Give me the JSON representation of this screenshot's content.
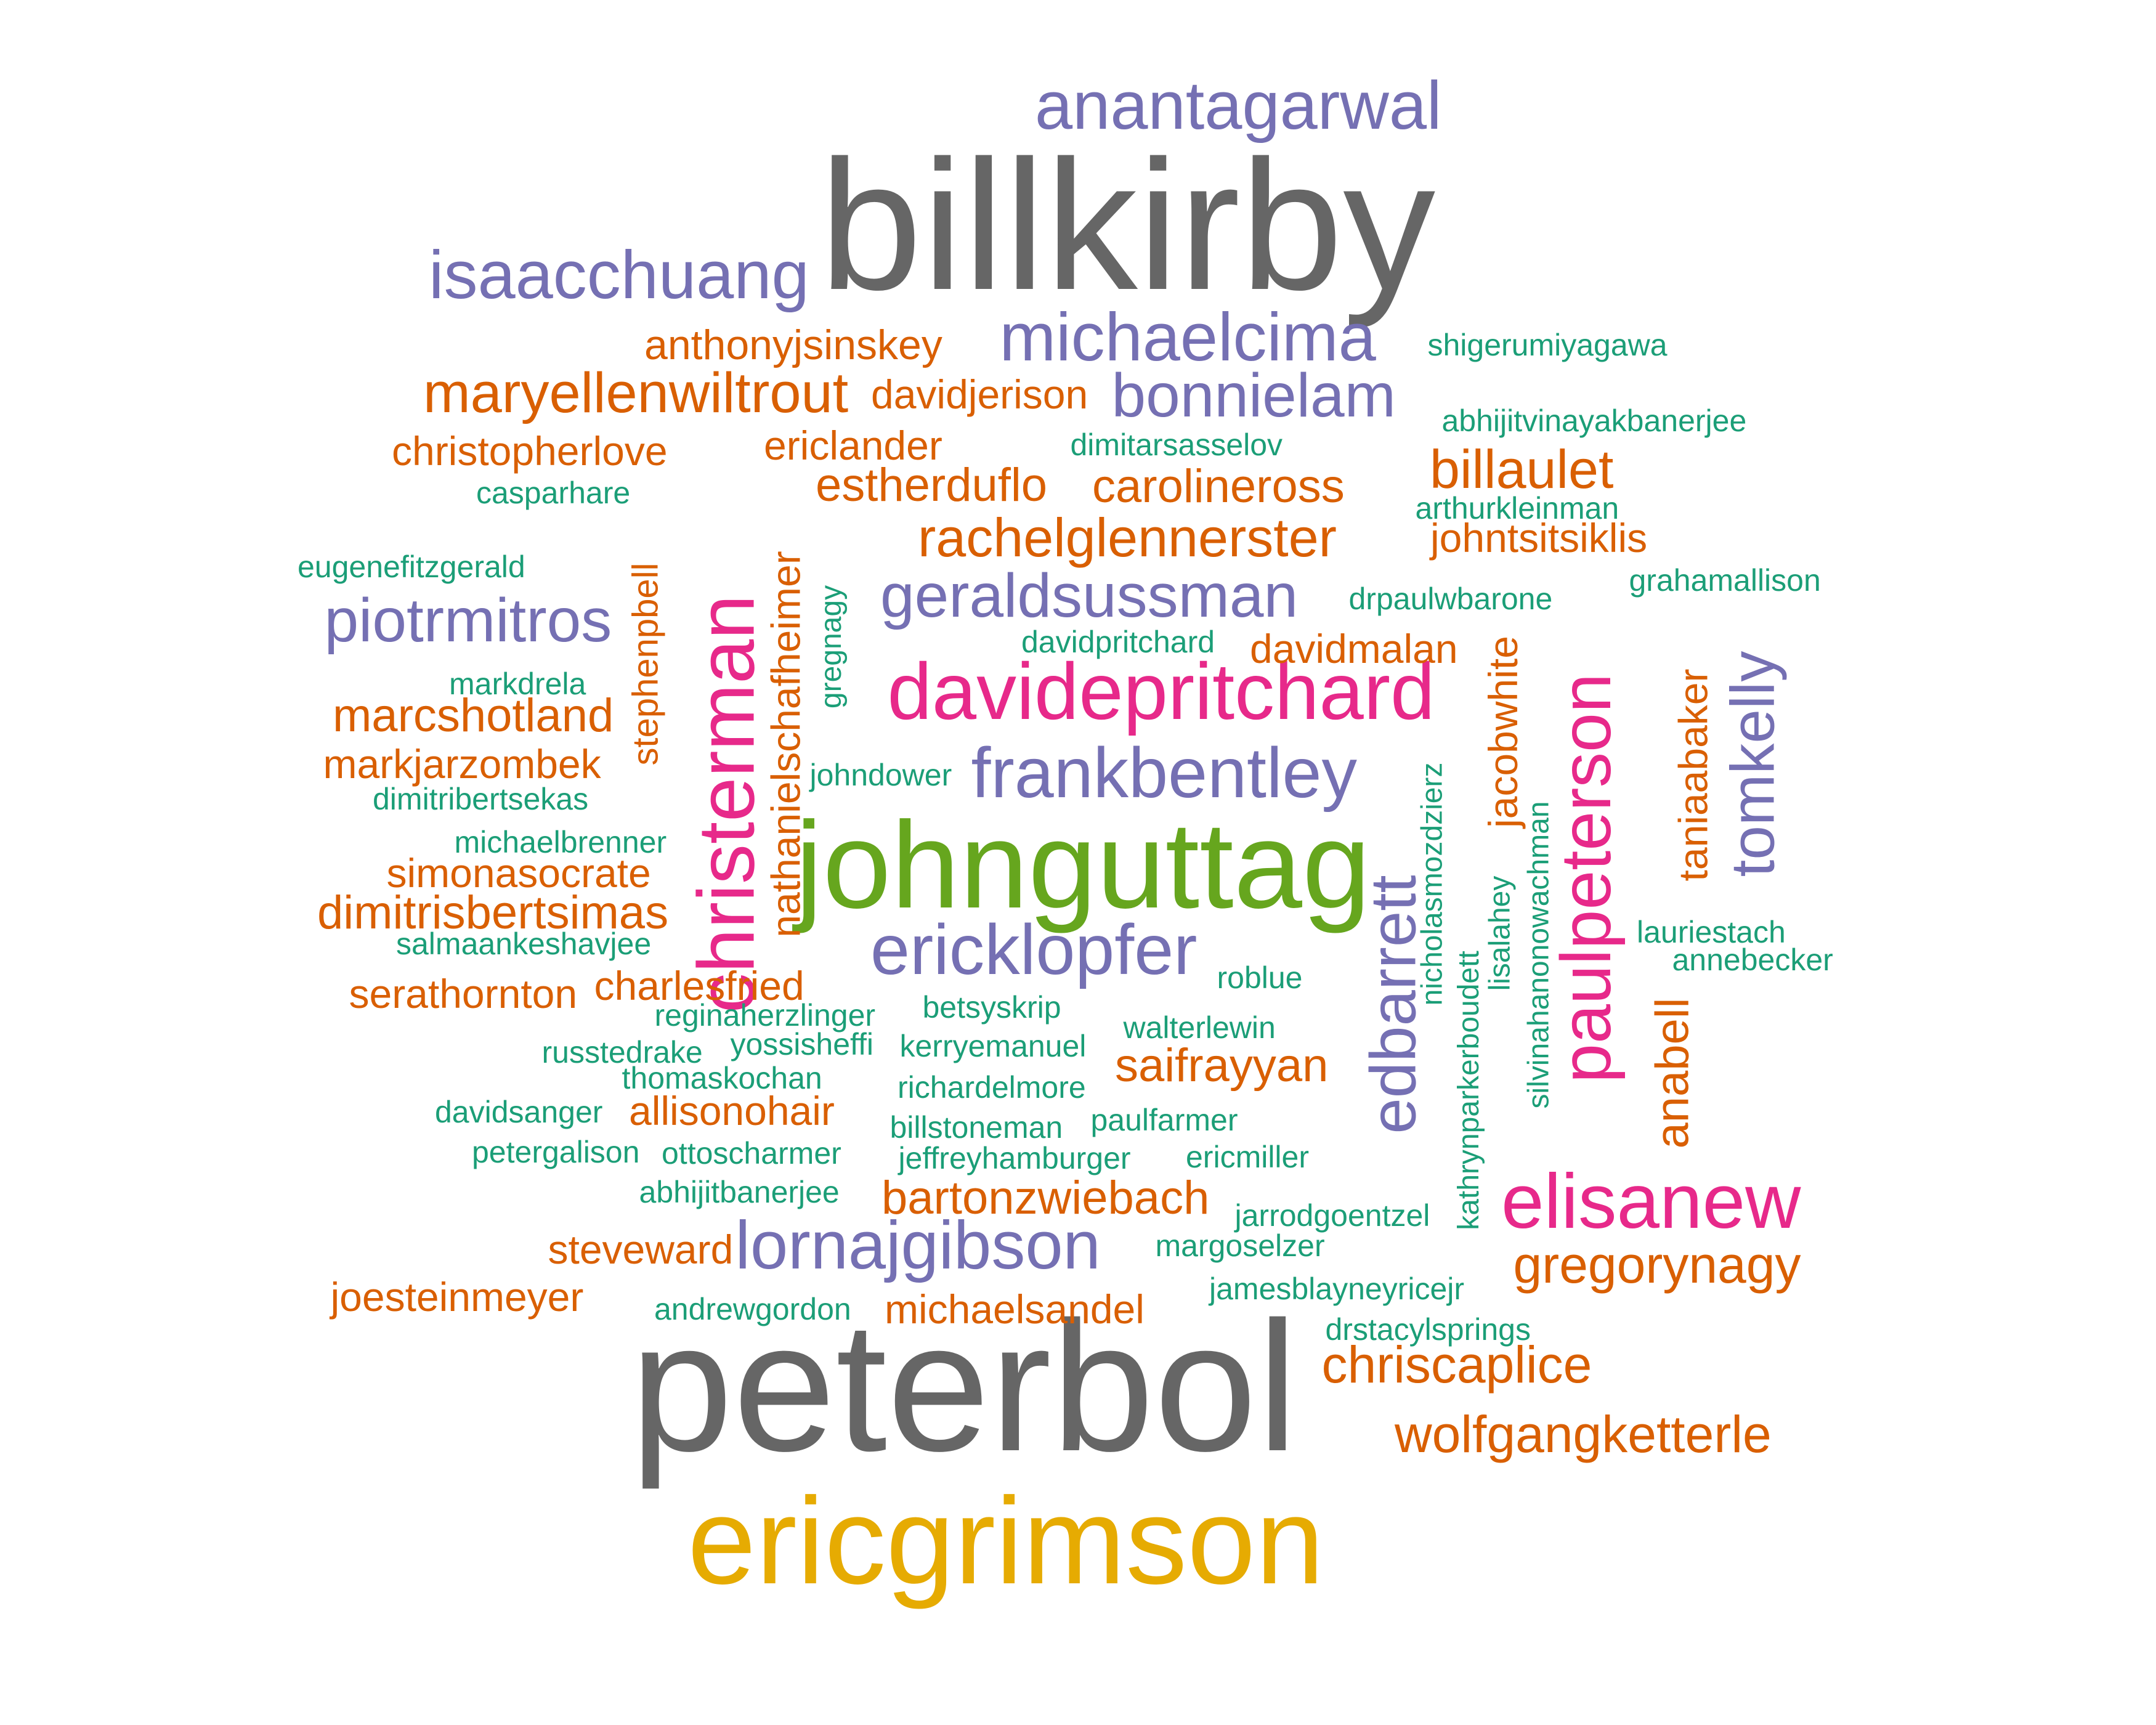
{
  "palette": {
    "gray": "#666666",
    "purple": "#7570b3",
    "orange": "#d95f02",
    "teal": "#1b9e77",
    "pink": "#e7298a",
    "green": "#66a61e",
    "gold": "#e6ab02"
  },
  "words": [
    {
      "text": "billkirby",
      "color": "gray"
    },
    {
      "text": "peterbol",
      "color": "gray"
    },
    {
      "text": "ericgrimson",
      "color": "gold"
    },
    {
      "text": "johnguttag",
      "color": "green"
    },
    {
      "text": "anantagarwal",
      "color": "purple"
    },
    {
      "text": "isaacchuang",
      "color": "purple"
    },
    {
      "text": "michaelcima",
      "color": "purple"
    },
    {
      "text": "bonnielam",
      "color": "purple"
    },
    {
      "text": "geraldsussman",
      "color": "purple"
    },
    {
      "text": "piotrmitros",
      "color": "purple"
    },
    {
      "text": "frankbentley",
      "color": "purple"
    },
    {
      "text": "ericklopfer",
      "color": "purple"
    },
    {
      "text": "lornajgibson",
      "color": "purple"
    },
    {
      "text": "edbarrett",
      "color": "purple"
    },
    {
      "text": "tomkelly",
      "color": "purple"
    },
    {
      "text": "christerman",
      "color": "pink"
    },
    {
      "text": "davidepritchard",
      "color": "pink"
    },
    {
      "text": "paulpeterson",
      "color": "pink"
    },
    {
      "text": "elisanew",
      "color": "pink"
    },
    {
      "text": "anthonyjsinskey",
      "color": "orange"
    },
    {
      "text": "maryellenwiltrout",
      "color": "orange"
    },
    {
      "text": "davidjerison",
      "color": "orange"
    },
    {
      "text": "christopherlove",
      "color": "orange"
    },
    {
      "text": "ericlander",
      "color": "orange"
    },
    {
      "text": "estherduflo",
      "color": "orange"
    },
    {
      "text": "carolineross",
      "color": "orange"
    },
    {
      "text": "billaulet",
      "color": "orange"
    },
    {
      "text": "rachelglennerster",
      "color": "orange"
    },
    {
      "text": "johntsitsiklis",
      "color": "orange"
    },
    {
      "text": "davidmalan",
      "color": "orange"
    },
    {
      "text": "marcshotland",
      "color": "orange"
    },
    {
      "text": "markjarzombek",
      "color": "orange"
    },
    {
      "text": "simonasocrate",
      "color": "orange"
    },
    {
      "text": "dimitrisbertsimas",
      "color": "orange"
    },
    {
      "text": "serathornton",
      "color": "orange"
    },
    {
      "text": "charlesfried",
      "color": "orange"
    },
    {
      "text": "saifrayyan",
      "color": "orange"
    },
    {
      "text": "allisonohair",
      "color": "orange"
    },
    {
      "text": "bartonzwiebach",
      "color": "orange"
    },
    {
      "text": "steveward",
      "color": "orange"
    },
    {
      "text": "joesteinmeyer",
      "color": "orange"
    },
    {
      "text": "michaelsandel",
      "color": "orange"
    },
    {
      "text": "gregorynagy",
      "color": "orange"
    },
    {
      "text": "chriscaplice",
      "color": "orange"
    },
    {
      "text": "wolfgangketterle",
      "color": "orange"
    },
    {
      "text": "jacobwhite",
      "color": "orange"
    },
    {
      "text": "taniaabaker",
      "color": "orange"
    },
    {
      "text": "anabell",
      "color": "orange"
    },
    {
      "text": "nathanielschafheimer",
      "color": "orange"
    },
    {
      "text": "stephenpbell",
      "color": "orange"
    },
    {
      "text": "shigerumiyagawa",
      "color": "teal"
    },
    {
      "text": "abhijitvinayakbanerjee",
      "color": "teal"
    },
    {
      "text": "dimitarsasselov",
      "color": "teal"
    },
    {
      "text": "casparhare",
      "color": "teal"
    },
    {
      "text": "arthurkleinman",
      "color": "teal"
    },
    {
      "text": "eugenefitzgerald",
      "color": "teal"
    },
    {
      "text": "grahamallison",
      "color": "teal"
    },
    {
      "text": "drpaulwbarone",
      "color": "teal"
    },
    {
      "text": "davidpritchard",
      "color": "teal"
    },
    {
      "text": "markdrela",
      "color": "teal"
    },
    {
      "text": "johndower",
      "color": "teal"
    },
    {
      "text": "dimitribertsekas",
      "color": "teal"
    },
    {
      "text": "michaelbrenner",
      "color": "teal"
    },
    {
      "text": "salmaankeshavjee",
      "color": "teal"
    },
    {
      "text": "roblue",
      "color": "teal"
    },
    {
      "text": "lauriestach",
      "color": "teal"
    },
    {
      "text": "annebecker",
      "color": "teal"
    },
    {
      "text": "betsyskrip",
      "color": "teal"
    },
    {
      "text": "reginaherzlinger",
      "color": "teal"
    },
    {
      "text": "walterlewin",
      "color": "teal"
    },
    {
      "text": "russtedrake",
      "color": "teal"
    },
    {
      "text": "yossisheffi",
      "color": "teal"
    },
    {
      "text": "kerryemanuel",
      "color": "teal"
    },
    {
      "text": "thomaskochan",
      "color": "teal"
    },
    {
      "text": "richardelmore",
      "color": "teal"
    },
    {
      "text": "davidsanger",
      "color": "teal"
    },
    {
      "text": "billstoneman",
      "color": "teal"
    },
    {
      "text": "paulfarmer",
      "color": "teal"
    },
    {
      "text": "petergalison",
      "color": "teal"
    },
    {
      "text": "ottoscharmer",
      "color": "teal"
    },
    {
      "text": "jeffreyhamburger",
      "color": "teal"
    },
    {
      "text": "ericmiller",
      "color": "teal"
    },
    {
      "text": "abhijitbanerjee",
      "color": "teal"
    },
    {
      "text": "jarrodgoentzel",
      "color": "teal"
    },
    {
      "text": "margoselzer",
      "color": "teal"
    },
    {
      "text": "jamesblayneyricejr",
      "color": "teal"
    },
    {
      "text": "andrewgordon",
      "color": "teal"
    },
    {
      "text": "drstacylsprings",
      "color": "teal"
    },
    {
      "text": "gregnagy",
      "color": "teal"
    },
    {
      "text": "nicholasmozdzierz",
      "color": "teal"
    },
    {
      "text": "lisalahey",
      "color": "teal"
    },
    {
      "text": "silvinahanonowachman",
      "color": "teal"
    },
    {
      "text": "kathrynparkerboudett",
      "color": "teal"
    }
  ]
}
